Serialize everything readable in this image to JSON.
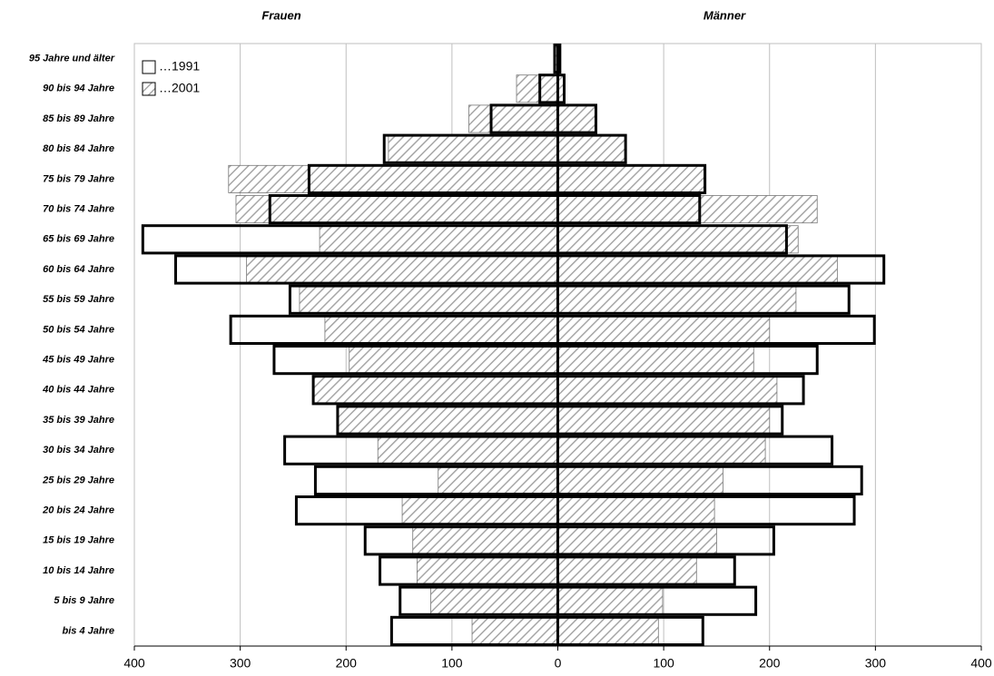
{
  "chart_data": {
    "type": "pyramid",
    "left_title": "Frauen",
    "right_title": "Männer",
    "categories": [
      "bis 4 Jahre",
      "5 bis 9 Jahre",
      "10 bis 14 Jahre",
      "15 bis 19 Jahre",
      "20 bis 24 Jahre",
      "25 bis 29 Jahre",
      "30 bis 34 Jahre",
      "35 bis 39 Jahre",
      "40 bis 44 Jahre",
      "45 bis 49 Jahre",
      "50 bis 54 Jahre",
      "55 bis 59 Jahre",
      "60 bis 64 Jahre",
      "65 bis 69 Jahre",
      "70 bis 74 Jahre",
      "75 bis 79 Jahre",
      "80 bis 84 Jahre",
      "85 bis 89 Jahre",
      "90 bis 94 Jahre",
      "95 Jahre und älter"
    ],
    "series": [
      {
        "name": "…1991",
        "color": "#ffffff",
        "values_left": [
          -157,
          -149,
          -168,
          -182,
          -247,
          -229,
          -258,
          -208,
          -231,
          -268,
          -309,
          -253,
          -361,
          -392,
          -272,
          -235,
          -164,
          -63,
          -17,
          -3
        ],
        "values_right": [
          137,
          187,
          167,
          204,
          280,
          287,
          259,
          212,
          232,
          245,
          299,
          275,
          308,
          216,
          134,
          139,
          64,
          36,
          6,
          2
        ]
      },
      {
        "name": "…2001",
        "color": "#a6a6a6",
        "values_left": [
          -81,
          -120,
          -133,
          -137,
          -147,
          -113,
          -170,
          -208,
          -231,
          -197,
          -220,
          -244,
          -294,
          -225,
          -304,
          -311,
          -160,
          -84,
          -39,
          -2
        ],
        "values_right": [
          95,
          99,
          131,
          150,
          148,
          156,
          196,
          200,
          207,
          185,
          200,
          225,
          264,
          227,
          245,
          138,
          64,
          35,
          6,
          2
        ]
      }
    ],
    "xlim": [
      -400,
      400
    ],
    "xticks": [
      {
        "value": -400,
        "label": "400"
      },
      {
        "value": -300,
        "label": "300"
      },
      {
        "value": -200,
        "label": "200"
      },
      {
        "value": -100,
        "label": "100"
      },
      0,
      100,
      200,
      300,
      400
    ],
    "grid": true,
    "legend": "upper left"
  }
}
